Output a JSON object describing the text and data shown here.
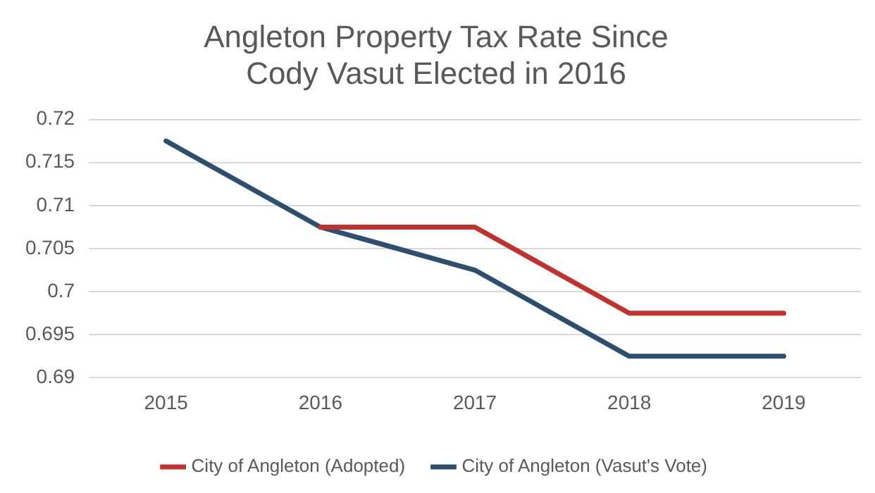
{
  "chart_data": {
    "type": "line",
    "title": "Angleton Property Tax Rate Since\nCody Vasut Elected in 2016",
    "categories": [
      "2015",
      "2016",
      "2017",
      "2018",
      "2019"
    ],
    "series": [
      {
        "name": "City of Angleton (Adopted)",
        "color": "#c0312f",
        "values": [
          null,
          0.7075,
          0.7075,
          0.6975,
          0.6975
        ]
      },
      {
        "name": "City of Angleton (Vasut's Vote)",
        "color": "#2e4e6f",
        "values": [
          0.7175,
          0.7075,
          0.7025,
          0.6925,
          0.6925
        ]
      }
    ],
    "ylim": [
      0.69,
      0.72
    ],
    "yticks": [
      0.69,
      0.695,
      0.7,
      0.705,
      0.71,
      0.715,
      0.72
    ],
    "grid": "y",
    "legend": "bottom",
    "marker": "none",
    "line_style": "solid"
  }
}
